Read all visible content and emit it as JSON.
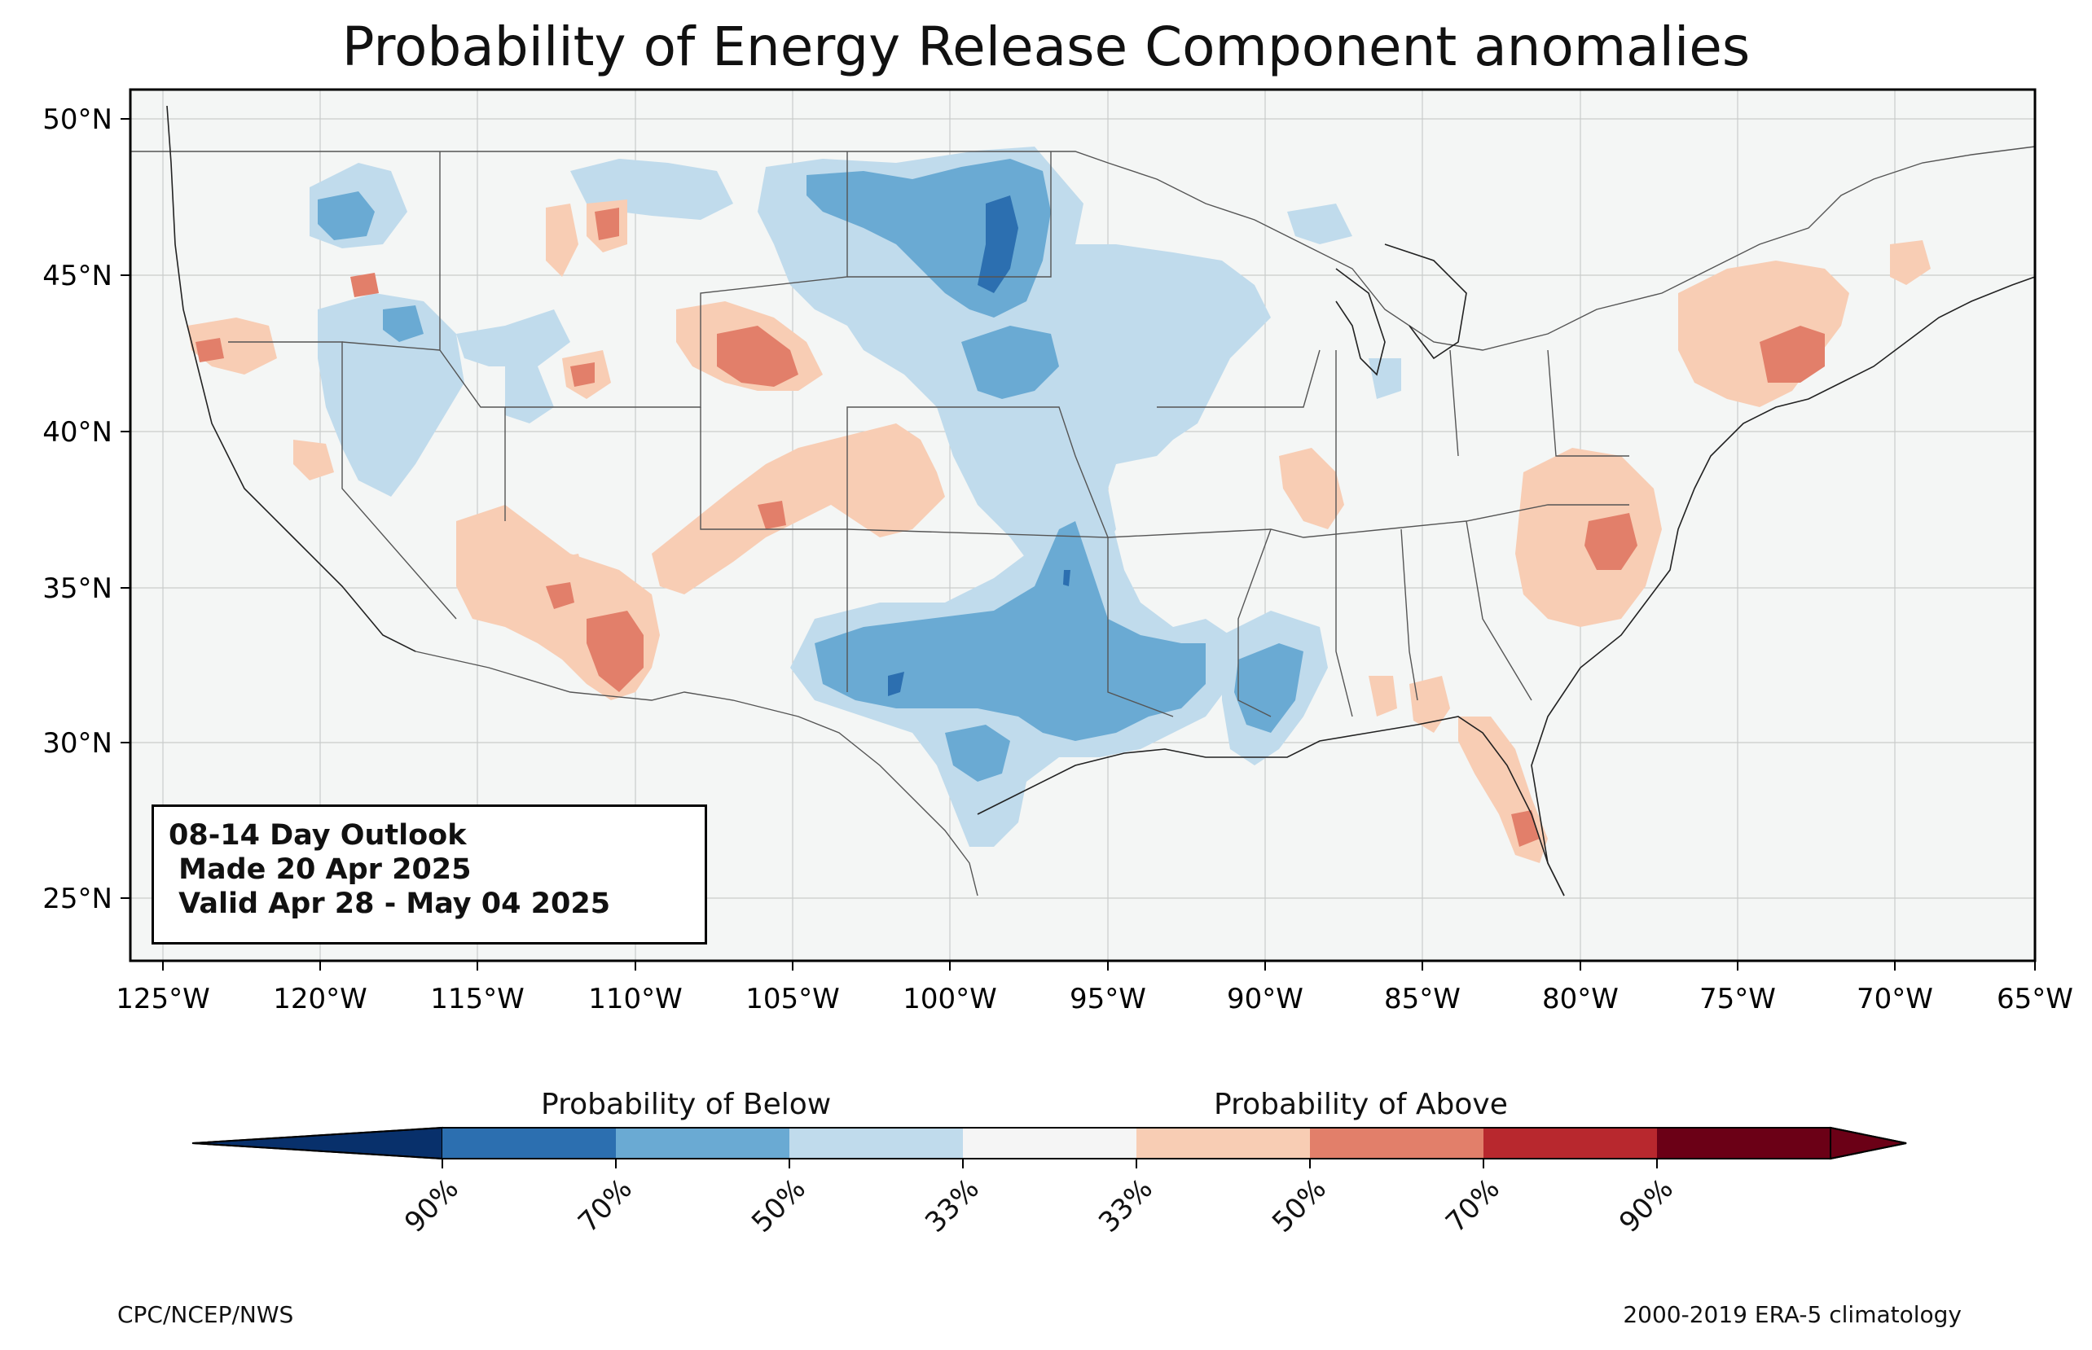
{
  "title": "Probability of Energy Release Component anomalies",
  "latitudes": [
    "50°N",
    "45°N",
    "40°N",
    "35°N",
    "30°N",
    "25°N"
  ],
  "longitudes": [
    "125°W",
    "120°W",
    "115°W",
    "110°W",
    "105°W",
    "100°W",
    "95°W",
    "90°W",
    "85°W",
    "80°W",
    "75°W",
    "70°W",
    "65°W"
  ],
  "outlook": {
    "line1": "08-14 Day Outlook",
    "line2": " Made 20 Apr 2025",
    "line3": " Valid Apr 28 - May 04 2025"
  },
  "legend": {
    "below_label": "Probability of Below",
    "above_label": "Probability of Above",
    "ticks": [
      "90%",
      "70%",
      "50%",
      "33%",
      "33%",
      "50%",
      "70%",
      "90%"
    ],
    "colors": [
      "#08306b",
      "#2c6fb0",
      "#6aaad3",
      "#c0dbec",
      "#f5f5f5",
      "#f8cdb4",
      "#e27f6a",
      "#b8282e",
      "#6b0016"
    ]
  },
  "credit_left": "CPC/NCEP/NWS",
  "credit_right": "2000-2019 ERA-5 climatology"
}
